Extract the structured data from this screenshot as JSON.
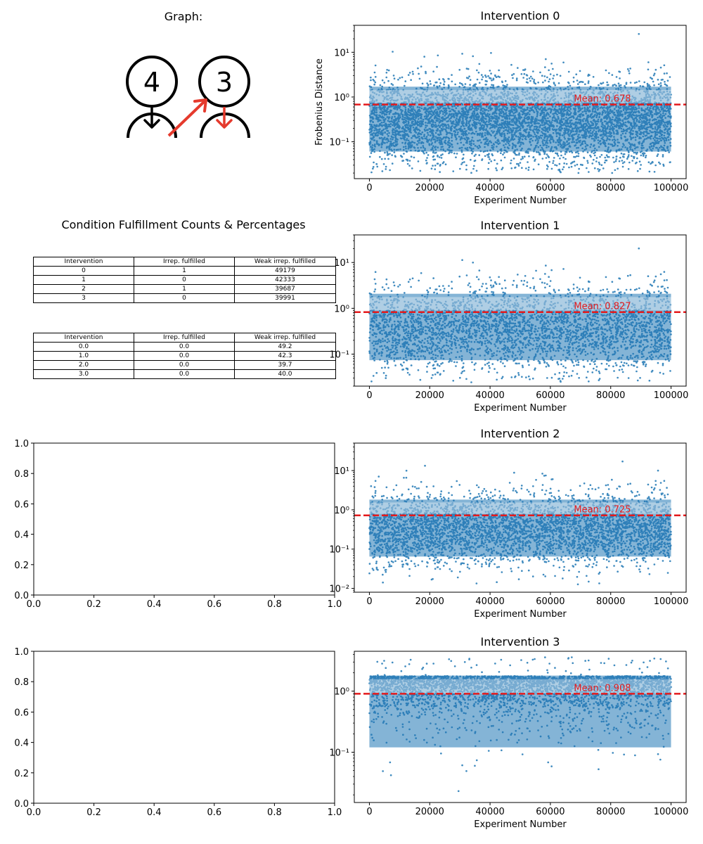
{
  "graph_panel": {
    "title": "Graph:",
    "nodes": [
      {
        "id": "node-4",
        "label": "4"
      },
      {
        "id": "node-3",
        "label": "3"
      }
    ],
    "edge_color": "#e53a2d"
  },
  "table_panel": {
    "title": "Condition Fulfillment Counts & Percentages",
    "counts": {
      "headers": [
        "Intervention",
        "Irrep. fulfilled",
        "Weak irrep. fulfilled"
      ],
      "rows": [
        [
          "0",
          "1",
          "49179"
        ],
        [
          "1",
          "0",
          "42333"
        ],
        [
          "2",
          "1",
          "39687"
        ],
        [
          "3",
          "0",
          "39991"
        ]
      ]
    },
    "percentages": {
      "headers": [
        "Intervention",
        "Irrep. fulfilled",
        "Weak irrep. fulfilled"
      ],
      "rows": [
        [
          "0.0",
          "0.0",
          "49.2"
        ],
        [
          "1.0",
          "0.0",
          "42.3"
        ],
        [
          "2.0",
          "0.0",
          "39.7"
        ],
        [
          "3.0",
          "0.0",
          "40.0"
        ]
      ]
    }
  },
  "chart_data": [
    {
      "type": "scatter",
      "title": "Intervention 0",
      "xlabel": "Experiment Number",
      "ylabel": "Frobenius Distance",
      "yscale": "log",
      "xlim": [
        -5000,
        105000
      ],
      "ylim": [
        0.015,
        40
      ],
      "xticks": [
        0,
        20000,
        40000,
        60000,
        80000,
        100000
      ],
      "yticks": [
        0.1,
        1,
        10
      ],
      "ytick_labels": [
        "10⁻¹",
        "10⁰",
        "10¹"
      ],
      "n_points": 100000,
      "y_min": 0.02,
      "y_max": 32,
      "mean": 0.678,
      "mean_label": "Mean: 0.678",
      "point_color": "#1f77b4",
      "mean_color": "#e41a1c"
    },
    {
      "type": "scatter",
      "title": "Intervention 1",
      "xlabel": "Experiment Number",
      "ylabel": "",
      "yscale": "log",
      "xlim": [
        -5000,
        105000
      ],
      "ylim": [
        0.02,
        40
      ],
      "xticks": [
        0,
        20000,
        40000,
        60000,
        80000,
        100000
      ],
      "yticks": [
        0.1,
        1,
        10
      ],
      "ytick_labels": [
        "10⁻¹",
        "10⁰",
        "10¹"
      ],
      "n_points": 100000,
      "y_min": 0.024,
      "y_max": 30,
      "mean": 0.827,
      "mean_label": "Mean: 0.827",
      "point_color": "#1f77b4",
      "mean_color": "#e41a1c"
    },
    {
      "type": "scatter",
      "title": "Intervention 2",
      "xlabel": "Experiment Number",
      "ylabel": "",
      "yscale": "log",
      "xlim": [
        -5000,
        105000
      ],
      "ylim": [
        0.008,
        50
      ],
      "xticks": [
        0,
        20000,
        40000,
        60000,
        80000,
        100000
      ],
      "yticks": [
        0.01,
        0.1,
        1,
        10
      ],
      "ytick_labels": [
        "10⁻²",
        "10⁻¹",
        "10⁰",
        "10¹"
      ],
      "n_points": 100000,
      "y_min": 0.012,
      "y_max": 32,
      "mean": 0.725,
      "mean_label": "Mean: 0.725",
      "point_color": "#1f77b4",
      "mean_color": "#e41a1c"
    },
    {
      "type": "scatter",
      "title": "Intervention 3",
      "xlabel": "Experiment Number",
      "ylabel": "",
      "yscale": "log",
      "xlim": [
        -5000,
        105000
      ],
      "ylim": [
        0.015,
        4.5
      ],
      "xticks": [
        0,
        20000,
        40000,
        60000,
        80000,
        100000
      ],
      "yticks": [
        0.1,
        1
      ],
      "ytick_labels": [
        "10⁻¹",
        "10⁰"
      ],
      "n_points": 100000,
      "y_min": 0.02,
      "y_max": 3.6,
      "mean": 0.908,
      "mean_label": "Mean: 0.908",
      "point_color": "#1f77b4",
      "mean_color": "#e41a1c"
    },
    {
      "type": "empty",
      "xlim": [
        0,
        1
      ],
      "ylim": [
        0,
        1
      ],
      "xticks": [
        0,
        0.2,
        0.4,
        0.6,
        0.8,
        1
      ],
      "yticks": [
        0,
        0.2,
        0.4,
        0.6,
        0.8,
        1
      ],
      "xtick_labels": [
        "0.0",
        "0.2",
        "0.4",
        "0.6",
        "0.8",
        "1.0"
      ],
      "ytick_labels": [
        "0.0",
        "0.2",
        "0.4",
        "0.6",
        "0.8",
        "1.0"
      ]
    },
    {
      "type": "empty",
      "xlim": [
        0,
        1
      ],
      "ylim": [
        0,
        1
      ],
      "xticks": [
        0,
        0.2,
        0.4,
        0.6,
        0.8,
        1
      ],
      "yticks": [
        0,
        0.2,
        0.4,
        0.6,
        0.8,
        1
      ],
      "xtick_labels": [
        "0.0",
        "0.2",
        "0.4",
        "0.6",
        "0.8",
        "1.0"
      ],
      "ytick_labels": [
        "0.0",
        "0.2",
        "0.4",
        "0.6",
        "0.8",
        "1.0"
      ]
    }
  ]
}
